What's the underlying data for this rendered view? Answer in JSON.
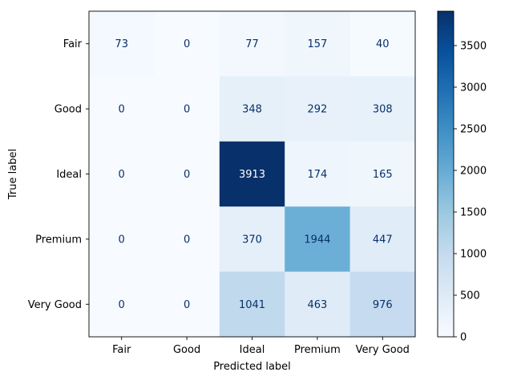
{
  "chart_data": {
    "type": "heatmap",
    "title": "",
    "xlabel": "Predicted label",
    "ylabel": "True label",
    "x_categories": [
      "Fair",
      "Good",
      "Ideal",
      "Premium",
      "Very Good"
    ],
    "y_categories": [
      "Fair",
      "Good",
      "Ideal",
      "Premium",
      "Very Good"
    ],
    "values": [
      [
        73,
        0,
        77,
        157,
        40
      ],
      [
        0,
        0,
        348,
        292,
        308
      ],
      [
        0,
        0,
        3913,
        174,
        165
      ],
      [
        0,
        0,
        370,
        1944,
        447
      ],
      [
        0,
        0,
        1041,
        463,
        976
      ]
    ],
    "colormap": "Blues",
    "vmin": 0,
    "vmax": 3913,
    "colorbar_ticks": [
      0,
      500,
      1000,
      1500,
      2000,
      2500,
      3000,
      3500
    ],
    "grid": false
  }
}
